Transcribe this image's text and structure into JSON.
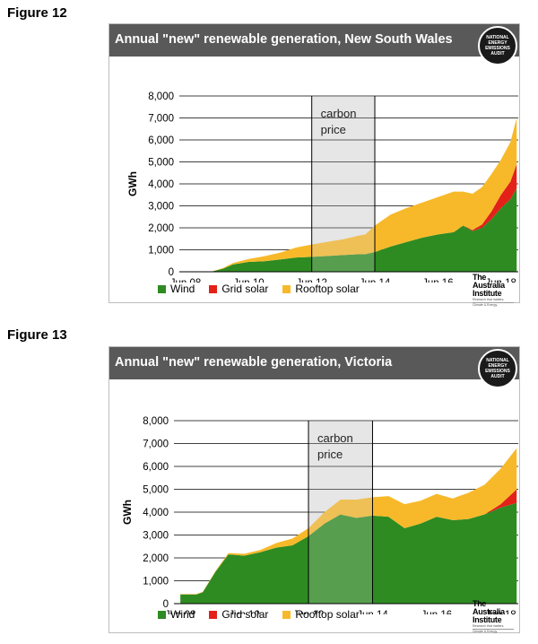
{
  "figures": [
    {
      "label": "Figure 12",
      "chart_data": {
        "type": "area",
        "stacked": true,
        "title": "Annual \"new\" renewable generation,  New South Wales",
        "ylabel": "GWh",
        "xlabel": "",
        "ylim": [
          0,
          8000
        ],
        "yticks": [
          "0",
          "1,000",
          "2,000",
          "3,000",
          "4,000",
          "5,000",
          "6,000",
          "7,000",
          "8,000"
        ],
        "xticks": [
          "Jun 08",
          "Jun 10",
          "Jun 12",
          "Jun 14",
          "Jun 16",
          "Jun 18"
        ],
        "x": [
          2008.5,
          2009.3,
          2009.7,
          2010.0,
          2010.5,
          2011.0,
          2011.5,
          2012.0,
          2012.5,
          2013.0,
          2013.5,
          2014.0,
          2014.2,
          2014.5,
          2015.0,
          2015.5,
          2016.0,
          2016.5,
          2017.0,
          2017.3,
          2017.6,
          2017.9,
          2018.2,
          2018.5,
          2018.8,
          2019.0
        ],
        "series": [
          {
            "name": "Wind",
            "color": "#2e8b22",
            "values": [
              0,
              0,
              150,
              330,
              450,
              480,
              560,
              650,
              680,
              720,
              760,
              800,
              800,
              900,
              1150,
              1350,
              1550,
              1700,
              1800,
              2100,
              1850,
              2000,
              2400,
              2900,
              3300,
              3800
            ]
          },
          {
            "name": "Grid solar",
            "color": "#e32119",
            "values": [
              0,
              0,
              0,
              0,
              0,
              0,
              0,
              0,
              0,
              0,
              0,
              0,
              0,
              0,
              0,
              0,
              0,
              0,
              0,
              0,
              50,
              150,
              350,
              600,
              800,
              1100
            ]
          },
          {
            "name": "Rooftop solar",
            "color": "#f7b92a",
            "values": [
              0,
              0,
              30,
              70,
              130,
              230,
              310,
              450,
              560,
              640,
              720,
              850,
              900,
              1200,
              1450,
              1550,
              1600,
              1700,
              1850,
              1550,
              1650,
              1700,
              1700,
              1600,
              1800,
              2100
            ]
          }
        ],
        "shaded_region": {
          "label_line1": "carbon",
          "label_line2": "price",
          "from": 2012.5,
          "to": 2014.5
        }
      }
    },
    {
      "label": "Figure 13",
      "chart_data": {
        "type": "area",
        "stacked": true,
        "title": "Annual \"new\" renewable generation,  Victoria",
        "ylabel": "GWh",
        "xlabel": "",
        "ylim": [
          0,
          8000
        ],
        "yticks": [
          "0",
          "1,000",
          "2,000",
          "3,000",
          "4,000",
          "5,000",
          "6,000",
          "7,000",
          "8,000"
        ],
        "xticks": [
          "Jun 08",
          "Jun 10",
          "Jun 12",
          "Jun 14",
          "Jun 16",
          "Jun 18"
        ],
        "x": [
          2008.5,
          2009.0,
          2009.2,
          2009.6,
          2010.0,
          2010.5,
          2011.0,
          2011.5,
          2012.0,
          2012.5,
          2013.0,
          2013.5,
          2014.0,
          2014.5,
          2015.0,
          2015.5,
          2016.0,
          2016.5,
          2017.0,
          2017.5,
          2018.0,
          2018.5,
          2019.0
        ],
        "series": [
          {
            "name": "Wind",
            "color": "#2e8b22",
            "values": [
              400,
              400,
              500,
              1400,
              2150,
              2100,
              2250,
              2450,
              2550,
              2950,
              3500,
              3900,
              3750,
              3850,
              3800,
              3300,
              3500,
              3800,
              3650,
              3700,
              3900,
              4200,
              4400
            ]
          },
          {
            "name": "Grid solar",
            "color": "#e32119",
            "values": [
              0,
              0,
              0,
              0,
              0,
              0,
              0,
              0,
              0,
              0,
              0,
              0,
              0,
              0,
              0,
              0,
              0,
              0,
              0,
              0,
              0,
              150,
              600
            ]
          },
          {
            "name": "Rooftop solar",
            "color": "#f7b92a",
            "values": [
              20,
              20,
              20,
              30,
              60,
              80,
              100,
              200,
              300,
              350,
              500,
              650,
              800,
              800,
              900,
              1050,
              1000,
              1000,
              950,
              1150,
              1300,
              1550,
              1800
            ]
          }
        ],
        "shaded_region": {
          "label_line1": "carbon",
          "label_line2": "price",
          "from": 2012.5,
          "to": 2014.5
        }
      }
    }
  ],
  "badge": {
    "text": "NATIONAL ENERGY EMISSIONS AUDIT"
  },
  "logo": {
    "line1": "The Australia Institute",
    "line2": "Research that matters.",
    "line3": "Climate & Energy."
  }
}
